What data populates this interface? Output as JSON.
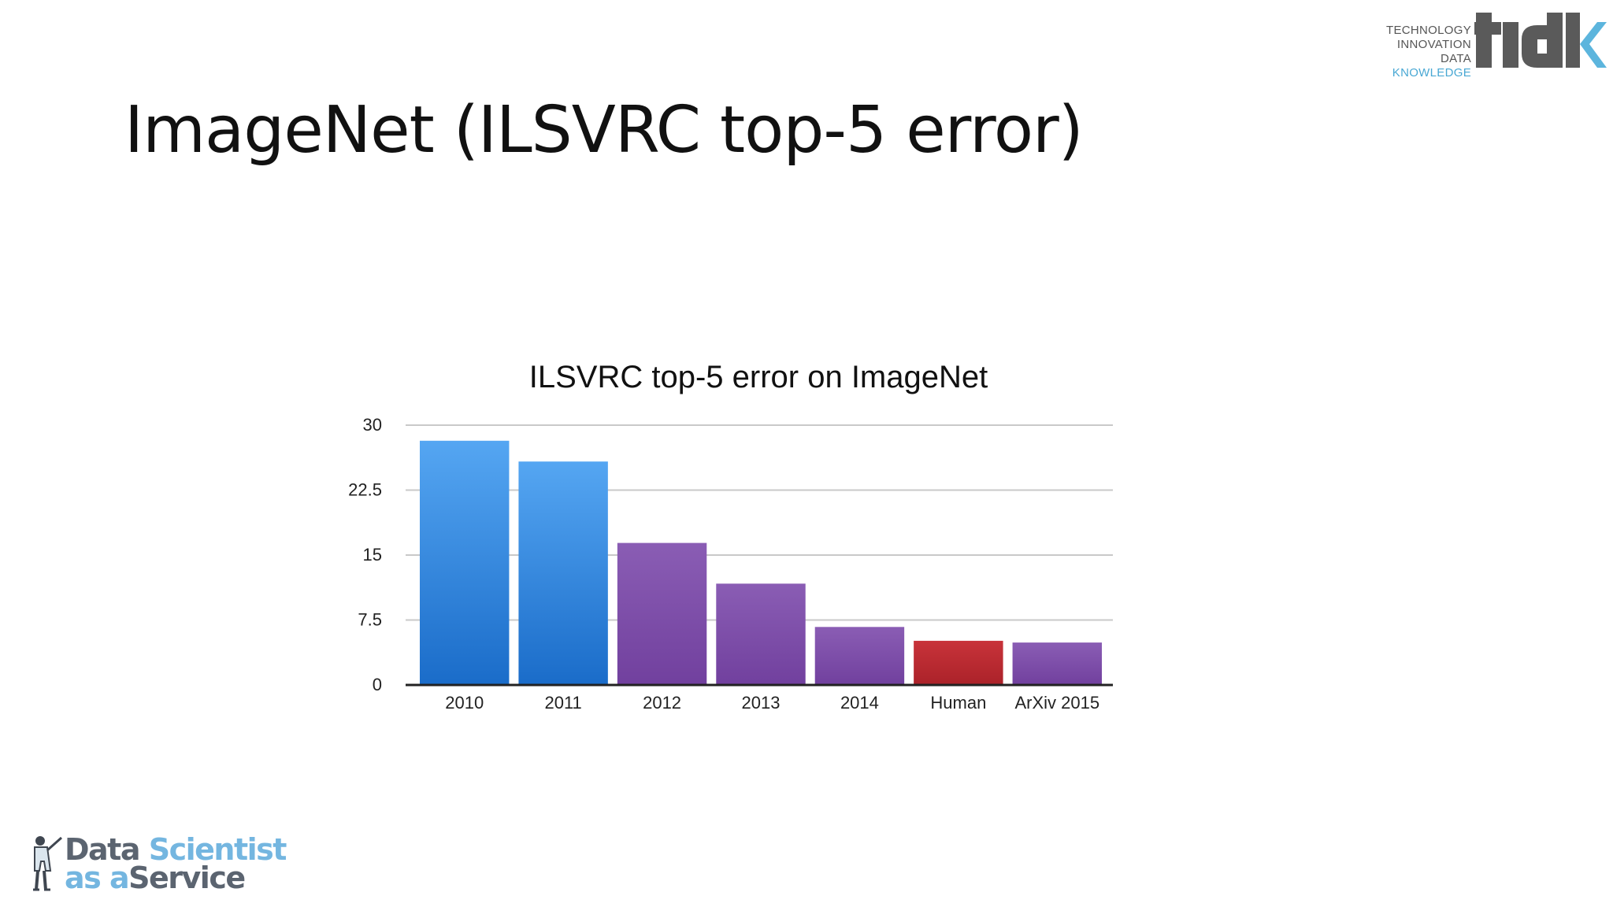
{
  "slide": {
    "title": "ImageNet (ILSVRC top-5 error)"
  },
  "logo_tidk": {
    "words": [
      "TECHNOLOGY",
      "INNOVATION",
      "DATA",
      "KNOWLEDGE"
    ],
    "mark_text": "tidk",
    "colors": {
      "text": "#555555",
      "knowledge": "#49a8d4",
      "mark": "#5a5a5a",
      "k_accent": "#5cb5dd"
    }
  },
  "logo_dsaas": {
    "line1_a": "Data",
    "line1_b": "Scientist",
    "line2_a": "as a",
    "line2_b": "Service",
    "icon": "scientist-figure-icon"
  },
  "chart_data": {
    "type": "bar",
    "title": "ILSVRC top-5 error on ImageNet",
    "xlabel": "",
    "ylabel": "",
    "categories": [
      "2010",
      "2011",
      "2012",
      "2013",
      "2014",
      "Human",
      "ArXiv 2015"
    ],
    "values": [
      28.2,
      25.8,
      16.4,
      11.7,
      6.7,
      5.1,
      4.9
    ],
    "bar_colors": [
      "#2f86e0",
      "#2f86e0",
      "#7a4aa8",
      "#7a4aa8",
      "#7a4aa8",
      "#b8262e",
      "#7a4aa8"
    ],
    "ylim": [
      0,
      30
    ],
    "yticks": [
      "0",
      "7.5",
      "15",
      "22.5",
      "30"
    ],
    "grid": true,
    "legend": "none"
  }
}
